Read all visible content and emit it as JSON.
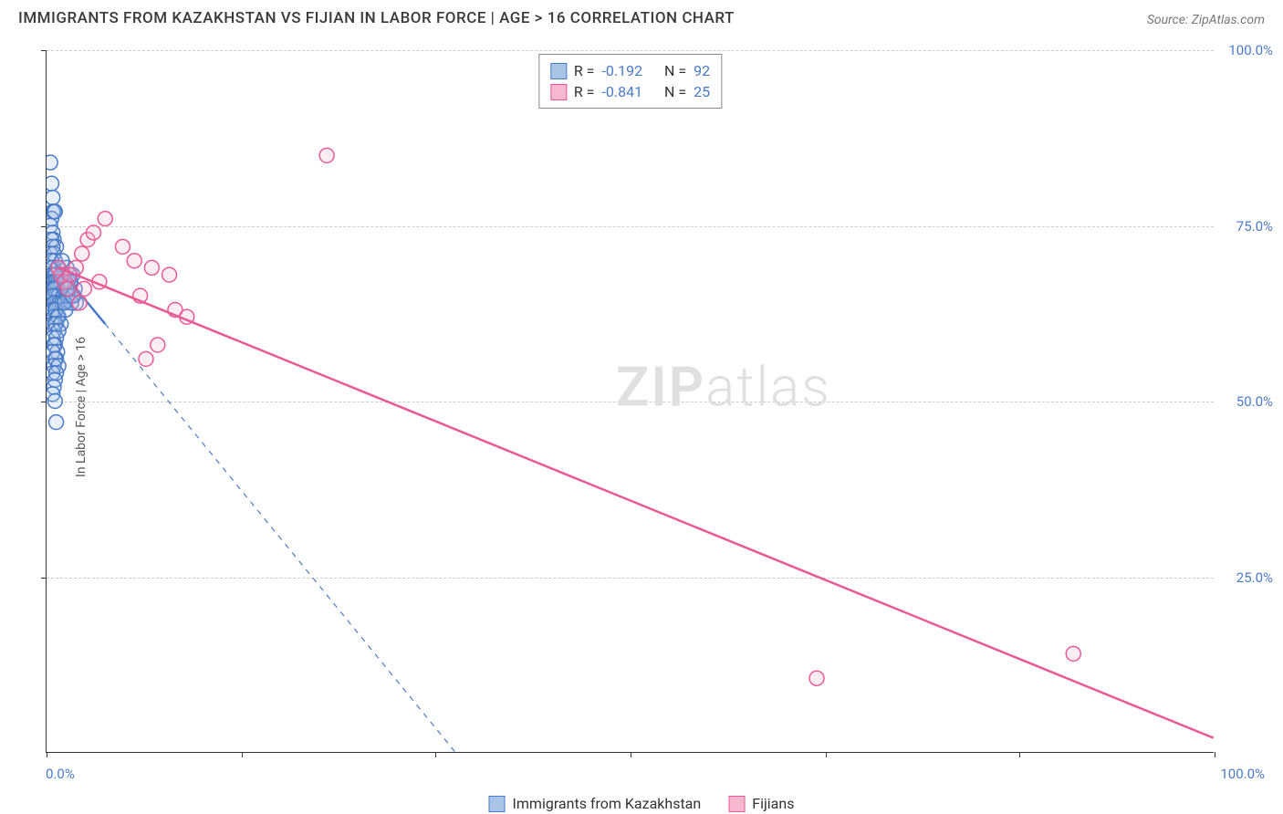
{
  "title": "IMMIGRANTS FROM KAZAKHSTAN VS FIJIAN IN LABOR FORCE | AGE > 16 CORRELATION CHART",
  "source_label": "Source: ",
  "source_value": "ZipAtlas.com",
  "y_axis_label": "In Labor Force | Age > 16",
  "watermark_bold": "ZIP",
  "watermark_light": "atlas",
  "chart": {
    "type": "scatter",
    "xlim": [
      0,
      100
    ],
    "ylim": [
      0,
      100
    ],
    "x_ticks": [
      0,
      16.7,
      33.3,
      50,
      66.7,
      83.3,
      100
    ],
    "x_tick_labels": {
      "0": "0.0%",
      "100": "100.0%"
    },
    "y_ticks": [
      25,
      50,
      75,
      100
    ],
    "y_tick_labels": [
      "25.0%",
      "50.0%",
      "75.0%",
      "100.0%"
    ],
    "grid_color": "#cccccc",
    "background_color": "#ffffff",
    "axis_color": "#333333",
    "marker_radius": 8,
    "marker_stroke_width": 1.5,
    "marker_fill_opacity": 0.25,
    "trend_line_width": 2.5,
    "series": [
      {
        "name": "Immigrants from Kazakhstan",
        "color": "#6b9bd8",
        "stroke": "#4a7bc8",
        "fill": "#a8c5e8",
        "r_value": "-0.192",
        "n_value": "92",
        "trend_solid": {
          "x1": 0.5,
          "y1": 70,
          "x2": 5,
          "y2": 61
        },
        "trend_dashed": {
          "x1": 5,
          "y1": 61,
          "x2": 35,
          "y2": 0
        },
        "points": [
          [
            0.3,
            84
          ],
          [
            0.4,
            81
          ],
          [
            0.5,
            79
          ],
          [
            0.5,
            77
          ],
          [
            0.6,
            77
          ],
          [
            0.4,
            76
          ],
          [
            0.3,
            75
          ],
          [
            0.7,
            77
          ],
          [
            0.5,
            74
          ],
          [
            0.6,
            73
          ],
          [
            0.4,
            73
          ],
          [
            0.8,
            72
          ],
          [
            0.5,
            72
          ],
          [
            0.3,
            71
          ],
          [
            0.6,
            71
          ],
          [
            0.7,
            70
          ],
          [
            0.4,
            70
          ],
          [
            0.9,
            69
          ],
          [
            0.5,
            69
          ],
          [
            0.6,
            68
          ],
          [
            0.8,
            68
          ],
          [
            0.4,
            68
          ],
          [
            0.7,
            68
          ],
          [
            0.5,
            67
          ],
          [
            0.6,
            67
          ],
          [
            0.8,
            67
          ],
          [
            1.0,
            67
          ],
          [
            0.4,
            66
          ],
          [
            0.9,
            66
          ],
          [
            0.6,
            66
          ],
          [
            1.2,
            67
          ],
          [
            0.5,
            66
          ],
          [
            0.7,
            66
          ],
          [
            0.8,
            65
          ],
          [
            0.6,
            65
          ],
          [
            1.0,
            65
          ],
          [
            0.5,
            65
          ],
          [
            1.4,
            65
          ],
          [
            0.9,
            64
          ],
          [
            0.7,
            64
          ],
          [
            0.6,
            64
          ],
          [
            1.1,
            64
          ],
          [
            0.5,
            63
          ],
          [
            0.8,
            63
          ],
          [
            1.3,
            64
          ],
          [
            0.7,
            63
          ],
          [
            0.6,
            62
          ],
          [
            1.0,
            62
          ],
          [
            0.9,
            62
          ],
          [
            0.5,
            61
          ],
          [
            0.8,
            61
          ],
          [
            0.7,
            61
          ],
          [
            1.2,
            61
          ],
          [
            0.6,
            60
          ],
          [
            1.0,
            60
          ],
          [
            0.5,
            59
          ],
          [
            0.8,
            59
          ],
          [
            0.7,
            58
          ],
          [
            0.6,
            58
          ],
          [
            0.9,
            57
          ],
          [
            0.5,
            57
          ],
          [
            0.8,
            56
          ],
          [
            0.7,
            56
          ],
          [
            0.6,
            55
          ],
          [
            1.0,
            55
          ],
          [
            0.5,
            54
          ],
          [
            0.8,
            54
          ],
          [
            0.7,
            53
          ],
          [
            0.6,
            52
          ],
          [
            0.5,
            51
          ],
          [
            0.7,
            50
          ],
          [
            0.8,
            47
          ],
          [
            1.5,
            66
          ],
          [
            1.8,
            67
          ],
          [
            2.0,
            65
          ],
          [
            2.2,
            68
          ],
          [
            2.5,
            64
          ],
          [
            1.6,
            63
          ],
          [
            1.9,
            66
          ],
          [
            2.3,
            65
          ],
          [
            1.4,
            68
          ],
          [
            1.7,
            69
          ],
          [
            2.1,
            64
          ],
          [
            1.3,
            70
          ],
          [
            1.6,
            67
          ],
          [
            1.8,
            65
          ],
          [
            2.4,
            66
          ],
          [
            1.5,
            64
          ],
          [
            1.9,
            68
          ],
          [
            2.0,
            67
          ],
          [
            1.7,
            66
          ],
          [
            2.2,
            65
          ]
        ]
      },
      {
        "name": "Fijians",
        "color": "#e87ba8",
        "stroke": "#e85a95",
        "fill": "#f5b8d0",
        "r_value": "-0.841",
        "n_value": "25",
        "trend_solid": {
          "x1": 1,
          "y1": 69,
          "x2": 100,
          "y2": 2
        },
        "trend_dashed": null,
        "points": [
          [
            1.0,
            69
          ],
          [
            1.2,
            68
          ],
          [
            1.5,
            67
          ],
          [
            1.8,
            66
          ],
          [
            2.0,
            68
          ],
          [
            2.5,
            69
          ],
          [
            3.0,
            71
          ],
          [
            3.5,
            73
          ],
          [
            4.0,
            74
          ],
          [
            5.0,
            76
          ],
          [
            6.5,
            72
          ],
          [
            7.5,
            70
          ],
          [
            8.0,
            65
          ],
          [
            9.0,
            69
          ],
          [
            10.5,
            68
          ],
          [
            11.0,
            63
          ],
          [
            12.0,
            62
          ],
          [
            9.5,
            58
          ],
          [
            8.5,
            56
          ],
          [
            24.0,
            85
          ],
          [
            66.0,
            10.5
          ],
          [
            88.0,
            14
          ],
          [
            2.8,
            64
          ],
          [
            3.2,
            66
          ],
          [
            4.5,
            67
          ]
        ]
      }
    ]
  },
  "legend_top": {
    "r_label": "R =",
    "n_label": "N ="
  }
}
